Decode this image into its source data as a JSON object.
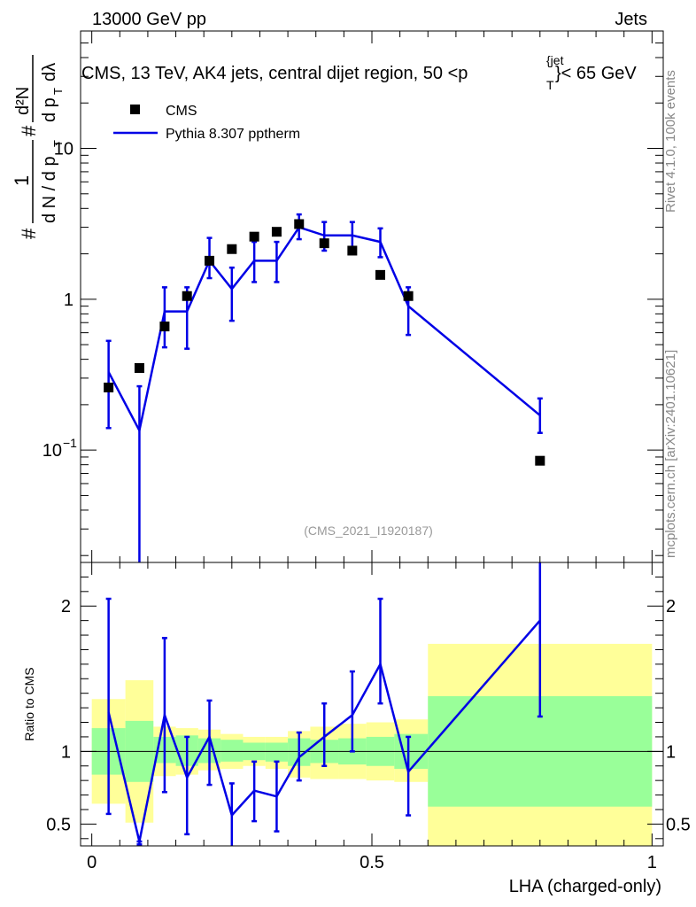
{
  "header": {
    "left": "13000 GeV pp",
    "right": "Jets",
    "title": "CMS, 13 TeV, AK4 jets, central dijet region, 50 <",
    "title_sub_p": "p",
    "title_sup": "{jet",
    "title_sub_T": "T",
    "title_end": "}< 65 GeV",
    "side_top": "Rivet 4.1.0,  100k events",
    "side_bottom": "mcplots.cern.ch [arXiv:2401.10621]",
    "watermark": "(CMS_2021_I1920187)"
  },
  "ylabel_top": {
    "hash": "#",
    "one": "1",
    "dN": "d N / d p",
    "T1": "T",
    "hash2": "#",
    "num": "d²N",
    "den": "d p",
    "T2": "T",
    "dl": "dλ"
  },
  "colors": {
    "data": "#000000",
    "mc": "#0000e6",
    "band_inner": "#99ff99",
    "band_outer": "#ffff99"
  },
  "chart_data": [
    {
      "type": "scatter",
      "panel": "main",
      "yscale": "log",
      "xlim": [
        -0.02,
        1.02
      ],
      "ylim": [
        0.018,
        60
      ],
      "ytick_labels": [
        {
          "value": 0.1,
          "base": "10",
          "exp": "−1"
        },
        {
          "value": 1,
          "base": "1",
          "exp": ""
        },
        {
          "value": 10,
          "base": "10",
          "exp": ""
        }
      ],
      "legend": [
        {
          "label": "CMS",
          "kind": "marker"
        },
        {
          "label": "Pythia 8.307 pptherm",
          "kind": "line"
        }
      ],
      "data_points": {
        "name": "CMS",
        "x": [
          0.03,
          0.085,
          0.13,
          0.17,
          0.21,
          0.25,
          0.29,
          0.33,
          0.37,
          0.415,
          0.465,
          0.515,
          0.565,
          0.8
        ],
        "y": [
          0.26,
          0.35,
          0.66,
          1.05,
          1.8,
          2.15,
          2.6,
          2.8,
          3.15,
          2.35,
          2.1,
          1.45,
          1.05,
          0.085
        ]
      },
      "mc": {
        "name": "Pythia 8.307 pptherm",
        "x": [
          0.03,
          0.085,
          0.13,
          0.17,
          0.21,
          0.25,
          0.29,
          0.33,
          0.37,
          0.415,
          0.465,
          0.515,
          0.565,
          0.8
        ],
        "y": [
          0.33,
          0.135,
          0.83,
          0.83,
          1.8,
          1.17,
          1.8,
          1.8,
          3.0,
          2.65,
          2.65,
          2.4,
          0.9,
          0.17
        ],
        "yerr_lo": [
          0.14,
          0.018,
          0.48,
          0.47,
          1.38,
          0.72,
          1.3,
          1.3,
          2.5,
          2.1,
          2.1,
          1.9,
          0.58,
          0.13
        ],
        "yerr_hi": [
          0.53,
          0.265,
          1.2,
          1.2,
          2.55,
          1.62,
          2.4,
          2.4,
          3.65,
          3.25,
          3.25,
          2.95,
          1.2,
          0.22
        ],
        "xedges": [
          0.01,
          0.055,
          0.11,
          0.15,
          0.19,
          0.23,
          0.27,
          0.31,
          0.35,
          0.39,
          0.44,
          0.49,
          0.54,
          0.6,
          1.0
        ]
      }
    },
    {
      "type": "line",
      "panel": "ratio",
      "ylabel": "Ratio to CMS",
      "xlabel": "LHA (charged-only)",
      "xlim": [
        -0.02,
        1.02
      ],
      "ylim": [
        0.35,
        2.3
      ],
      "xticks": [
        0,
        0.5,
        1
      ],
      "xtick_labels": [
        "0",
        "0.5",
        "1"
      ],
      "yticks": [
        0.5,
        1,
        2
      ],
      "ytick_labels": [
        "0.5",
        "1",
        "2"
      ],
      "bands": {
        "edges": [
          0.0,
          0.06,
          0.11,
          0.15,
          0.19,
          0.23,
          0.27,
          0.31,
          0.35,
          0.39,
          0.44,
          0.49,
          0.54,
          0.6,
          1.0
        ],
        "inner_lo": [
          0.84,
          0.79,
          0.92,
          0.9,
          0.92,
          0.93,
          0.94,
          0.93,
          0.9,
          0.92,
          0.91,
          0.9,
          0.88,
          0.62
        ],
        "inner_hi": [
          1.16,
          1.21,
          1.1,
          1.11,
          1.09,
          1.08,
          1.06,
          1.06,
          1.09,
          1.08,
          1.09,
          1.1,
          1.12,
          1.38
        ],
        "outer_lo": [
          0.64,
          0.51,
          0.83,
          0.84,
          0.87,
          0.88,
          0.9,
          0.88,
          0.82,
          0.81,
          0.81,
          0.8,
          0.79,
          0.35
        ],
        "outer_hi": [
          1.36,
          1.49,
          1.17,
          1.16,
          1.15,
          1.12,
          1.1,
          1.1,
          1.14,
          1.17,
          1.19,
          1.2,
          1.22,
          1.74
        ]
      },
      "mc": {
        "x": [
          0.03,
          0.085,
          0.13,
          0.17,
          0.21,
          0.25,
          0.29,
          0.33,
          0.37,
          0.415,
          0.465,
          0.515,
          0.565,
          0.8
        ],
        "y": [
          1.27,
          0.38,
          1.25,
          0.82,
          1.1,
          0.56,
          0.73,
          0.69,
          0.96,
          1.1,
          1.25,
          1.6,
          0.86,
          1.9
        ],
        "yerr_lo": [
          0.57,
          0.36,
          0.72,
          0.43,
          0.77,
          0.34,
          0.52,
          0.45,
          0.8,
          0.9,
          1.0,
          1.33,
          0.56,
          1.24
        ],
        "yerr_hi": [
          2.05,
          0.38,
          1.78,
          1.1,
          1.35,
          0.78,
          0.93,
          0.93,
          1.13,
          1.33,
          1.55,
          2.05,
          1.1,
          2.3
        ]
      }
    }
  ]
}
